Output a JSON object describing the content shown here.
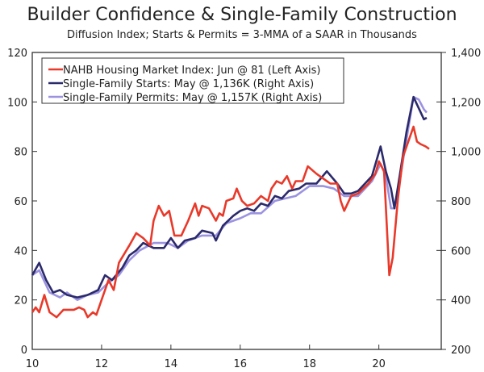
{
  "chart_data": {
    "type": "line",
    "title": "Builder Confidence & Single-Family Construction",
    "subtitle": "Diffusion Index; Starts & Permits = 3-MMA of a SAAR in Thousands",
    "xlim": [
      2010,
      2021.8
    ],
    "x_ticks": [
      2010,
      2012,
      2014,
      2016,
      2018,
      2020
    ],
    "x_tick_labels": [
      "10",
      "12",
      "14",
      "16",
      "18",
      "20"
    ],
    "y_left": {
      "lim": [
        0,
        120
      ],
      "ticks": [
        0,
        20,
        40,
        60,
        80,
        100,
        120
      ],
      "tick_labels": [
        "0",
        "20",
        "40",
        "60",
        "80",
        "100",
        "120"
      ]
    },
    "y_right": {
      "lim": [
        200,
        1400
      ],
      "ticks": [
        200,
        400,
        600,
        800,
        1000,
        1200,
        1400
      ],
      "tick_labels": [
        "200",
        "400",
        "600",
        "800",
        "1,000",
        "1,200",
        "1,400"
      ]
    },
    "legend_placement": "top-left",
    "series": [
      {
        "name": "NAHB Housing Market Index: Jun @ 81 (Left Axis)",
        "axis": "left",
        "color": "#e8392a",
        "x": [
          2010.0,
          2010.1,
          2010.2,
          2010.35,
          2010.5,
          2010.7,
          2010.9,
          2011.2,
          2011.35,
          2011.5,
          2011.6,
          2011.75,
          2011.85,
          2012.0,
          2012.2,
          2012.35,
          2012.5,
          2012.8,
          2013.0,
          2013.2,
          2013.4,
          2013.5,
          2013.65,
          2013.8,
          2013.95,
          2014.1,
          2014.3,
          2014.5,
          2014.7,
          2014.8,
          2014.9,
          2015.1,
          2015.3,
          2015.4,
          2015.5,
          2015.6,
          2015.8,
          2015.9,
          2016.05,
          2016.2,
          2016.4,
          2016.6,
          2016.8,
          2016.9,
          2017.05,
          2017.2,
          2017.35,
          2017.5,
          2017.6,
          2017.8,
          2017.95,
          2018.2,
          2018.4,
          2018.6,
          2018.8,
          2018.9,
          2019.0,
          2019.2,
          2019.4,
          2019.7,
          2019.9,
          2020.0,
          2020.15,
          2020.3,
          2020.4,
          2020.55,
          2020.7,
          2020.9,
          2021.0,
          2021.1,
          2021.2,
          2021.35,
          2021.45
        ],
        "values": [
          15,
          17,
          15,
          22,
          15,
          13,
          16,
          16,
          17,
          16,
          13,
          15,
          14,
          20,
          28,
          24,
          35,
          42,
          47,
          45,
          42,
          52,
          58,
          54,
          56,
          46,
          46,
          52,
          59,
          54,
          58,
          57,
          52,
          55,
          54,
          60,
          61,
          65,
          60,
          58,
          59,
          62,
          60,
          65,
          68,
          67,
          70,
          65,
          68,
          68,
          74,
          71,
          69,
          67,
          67,
          60,
          56,
          62,
          63,
          67,
          71,
          76,
          72,
          30,
          37,
          61,
          78,
          86,
          90,
          84,
          83,
          82,
          81
        ]
      },
      {
        "name": "Single-Family Starts: May @ 1,136K (Right Axis)",
        "axis": "right",
        "color": "#2b2a6b",
        "x": [
          2010.0,
          2010.2,
          2010.4,
          2010.6,
          2010.8,
          2011.0,
          2011.3,
          2011.6,
          2011.9,
          2012.1,
          2012.3,
          2012.6,
          2012.8,
          2013.0,
          2013.2,
          2013.5,
          2013.8,
          2014.0,
          2014.2,
          2014.4,
          2014.7,
          2014.9,
          2015.2,
          2015.3,
          2015.5,
          2015.8,
          2016.0,
          2016.2,
          2016.4,
          2016.6,
          2016.8,
          2017.0,
          2017.2,
          2017.4,
          2017.7,
          2017.9,
          2018.2,
          2018.5,
          2018.8,
          2019.0,
          2019.2,
          2019.4,
          2019.8,
          2020.05,
          2020.2,
          2020.35,
          2020.45,
          2020.6,
          2020.8,
          2021.0,
          2021.2,
          2021.3,
          2021.38
        ],
        "values": [
          500,
          550,
          480,
          430,
          440,
          420,
          410,
          420,
          440,
          500,
          480,
          530,
          580,
          600,
          630,
          610,
          610,
          650,
          610,
          640,
          650,
          680,
          670,
          640,
          700,
          740,
          760,
          770,
          760,
          790,
          780,
          820,
          810,
          840,
          850,
          870,
          870,
          920,
          870,
          830,
          830,
          840,
          900,
          1020,
          920,
          850,
          770,
          900,
          1080,
          1220,
          1160,
          1130,
          1136
        ]
      },
      {
        "name": "Single-Family Permits: May @ 1,157K (Right Axis)",
        "axis": "right",
        "color": "#9b93e0",
        "x": [
          2010.0,
          2010.2,
          2010.5,
          2010.8,
          2011.0,
          2011.3,
          2011.6,
          2011.9,
          2012.2,
          2012.5,
          2012.8,
          2013.1,
          2013.5,
          2013.9,
          2014.2,
          2014.5,
          2014.9,
          2015.3,
          2015.6,
          2016.0,
          2016.3,
          2016.6,
          2017.0,
          2017.3,
          2017.6,
          2018.0,
          2018.4,
          2018.7,
          2019.0,
          2019.4,
          2019.8,
          2020.05,
          2020.2,
          2020.35,
          2020.45,
          2020.6,
          2020.8,
          2021.0,
          2021.15,
          2021.3,
          2021.38
        ],
        "values": [
          500,
          520,
          430,
          410,
          430,
          400,
          420,
          430,
          470,
          500,
          560,
          600,
          630,
          630,
          610,
          640,
          660,
          660,
          710,
          730,
          750,
          750,
          800,
          810,
          820,
          860,
          860,
          850,
          820,
          820,
          880,
          950,
          900,
          770,
          770,
          880,
          1050,
          1220,
          1210,
          1170,
          1157
        ]
      }
    ]
  }
}
